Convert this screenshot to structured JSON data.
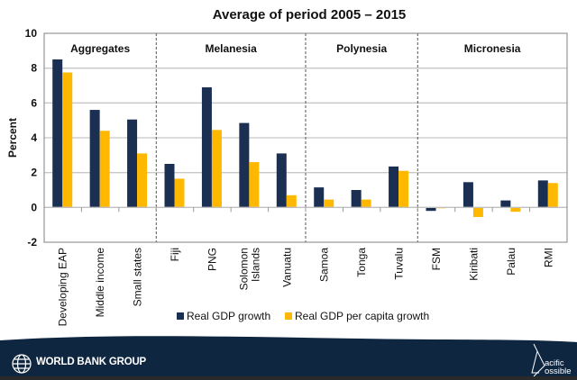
{
  "chart_data": {
    "type": "bar",
    "title": "Average of period 2005 – 2015",
    "xlabel": "",
    "ylabel": "Percent",
    "ylim": [
      -2,
      10
    ],
    "yticks": [
      -2,
      0,
      2,
      4,
      6,
      8,
      10
    ],
    "grid": true,
    "legend_position": "bottom-center",
    "categories": [
      "Developing EAP",
      "Middle income",
      "Small states",
      "Fiji",
      "PNG",
      "Solomon Islands",
      "Vanuatu",
      "Samoa",
      "Tonga",
      "Tuvalu",
      "FSM",
      "Kiribati",
      "Palau",
      "RMI"
    ],
    "category_label_lines": [
      [
        "Developing EAP"
      ],
      [
        "Middle income"
      ],
      [
        "Small states"
      ],
      [
        "Fiji"
      ],
      [
        "PNG"
      ],
      [
        "Solomon",
        "Islands"
      ],
      [
        "Vanuatu"
      ],
      [
        "Samoa"
      ],
      [
        "Tonga"
      ],
      [
        "Tuvalu"
      ],
      [
        "FSM"
      ],
      [
        "Kiribati"
      ],
      [
        "Palau"
      ],
      [
        "RMI"
      ]
    ],
    "groups": [
      {
        "name": "Aggregates",
        "start": 0,
        "count": 3
      },
      {
        "name": "Melanesia",
        "start": 3,
        "count": 4
      },
      {
        "name": "Polynesia",
        "start": 7,
        "count": 3
      },
      {
        "name": "Micronesia",
        "start": 10,
        "count": 4
      }
    ],
    "series": [
      {
        "name": "Real GDP growth",
        "color": "#1b2f52",
        "values": [
          8.5,
          5.6,
          5.05,
          2.5,
          6.9,
          4.85,
          3.1,
          1.15,
          1.0,
          2.35,
          -0.2,
          1.45,
          0.4,
          1.55
        ]
      },
      {
        "name": "Real GDP per capita growth",
        "color": "#ffb800",
        "values": [
          7.75,
          4.4,
          3.1,
          1.65,
          4.45,
          2.6,
          0.7,
          0.45,
          0.45,
          2.1,
          -0.05,
          -0.55,
          -0.25,
          1.4
        ]
      }
    ]
  },
  "footer": {
    "left_logo": "WORLD BANK GROUP",
    "right_logo_line1": "acific",
    "right_logo_line2": "ossible",
    "background": "#0f2640"
  }
}
